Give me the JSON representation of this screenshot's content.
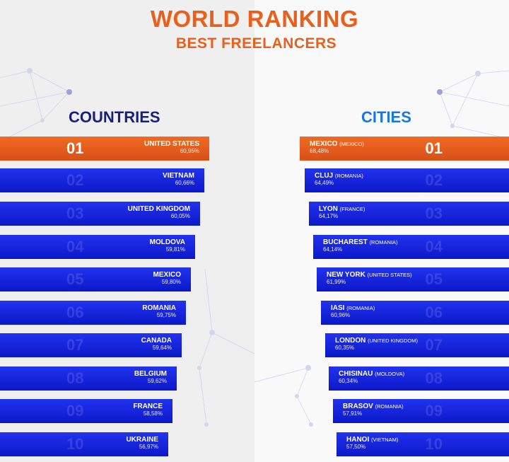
{
  "header": {
    "title": "WORLD RANKING",
    "subtitle": "BEST FREELANCERS"
  },
  "countries": {
    "heading": "COUNTRIES",
    "items": [
      {
        "rank": "01",
        "name": "UNITED STATES",
        "percent": "60,95%"
      },
      {
        "rank": "02",
        "name": "VIETNAM",
        "percent": "60,66%"
      },
      {
        "rank": "03",
        "name": "UNITED KINGDOM",
        "percent": "60,05%"
      },
      {
        "rank": "04",
        "name": "MOLDOVA",
        "percent": "59,81%"
      },
      {
        "rank": "05",
        "name": "MEXICO",
        "percent": "59,80%"
      },
      {
        "rank": "06",
        "name": "ROMANIA",
        "percent": "59,75%"
      },
      {
        "rank": "07",
        "name": "CANADA",
        "percent": "59,64%"
      },
      {
        "rank": "08",
        "name": "BELGIUM",
        "percent": "59,62%"
      },
      {
        "rank": "09",
        "name": "FRANCE",
        "percent": "58,58%"
      },
      {
        "rank": "10",
        "name": "UKRAINE",
        "percent": "56,97%"
      }
    ]
  },
  "cities": {
    "heading": "CITIES",
    "items": [
      {
        "rank": "01",
        "name": "MEXICO",
        "country": "(MEXICO)",
        "percent": "68,48%"
      },
      {
        "rank": "02",
        "name": "CLUJ",
        "country": "(ROMANIA)",
        "percent": "64,49%"
      },
      {
        "rank": "03",
        "name": "LYON",
        "country": "(FRANCE)",
        "percent": "64,17%"
      },
      {
        "rank": "04",
        "name": "BUCHAREST",
        "country": "(ROMANIA)",
        "percent": "64,14%"
      },
      {
        "rank": "05",
        "name": "NEW YORK",
        "country": "(UNITED STATES)",
        "percent": "61,99%"
      },
      {
        "rank": "06",
        "name": "IASI",
        "country": "(ROMANIA)",
        "percent": "60,96%"
      },
      {
        "rank": "07",
        "name": "LONDON",
        "country": "(UNITED KINGDOM)",
        "percent": "60,35%"
      },
      {
        "rank": "08",
        "name": "CHISINAU",
        "country": "(MOLDOVA)",
        "percent": "60,34%"
      },
      {
        "rank": "09",
        "name": "BRASOV",
        "country": "(ROMANIA)",
        "percent": "57,91%"
      },
      {
        "rank": "10",
        "name": "HANOI",
        "country": "(VIETNAM)",
        "percent": "57,50%"
      }
    ]
  },
  "colors": {
    "accent_orange": "#e8601c",
    "bar_blue": "#0c17c9",
    "countries_heading": "#1a1f7a",
    "cities_heading": "#1976e0"
  }
}
